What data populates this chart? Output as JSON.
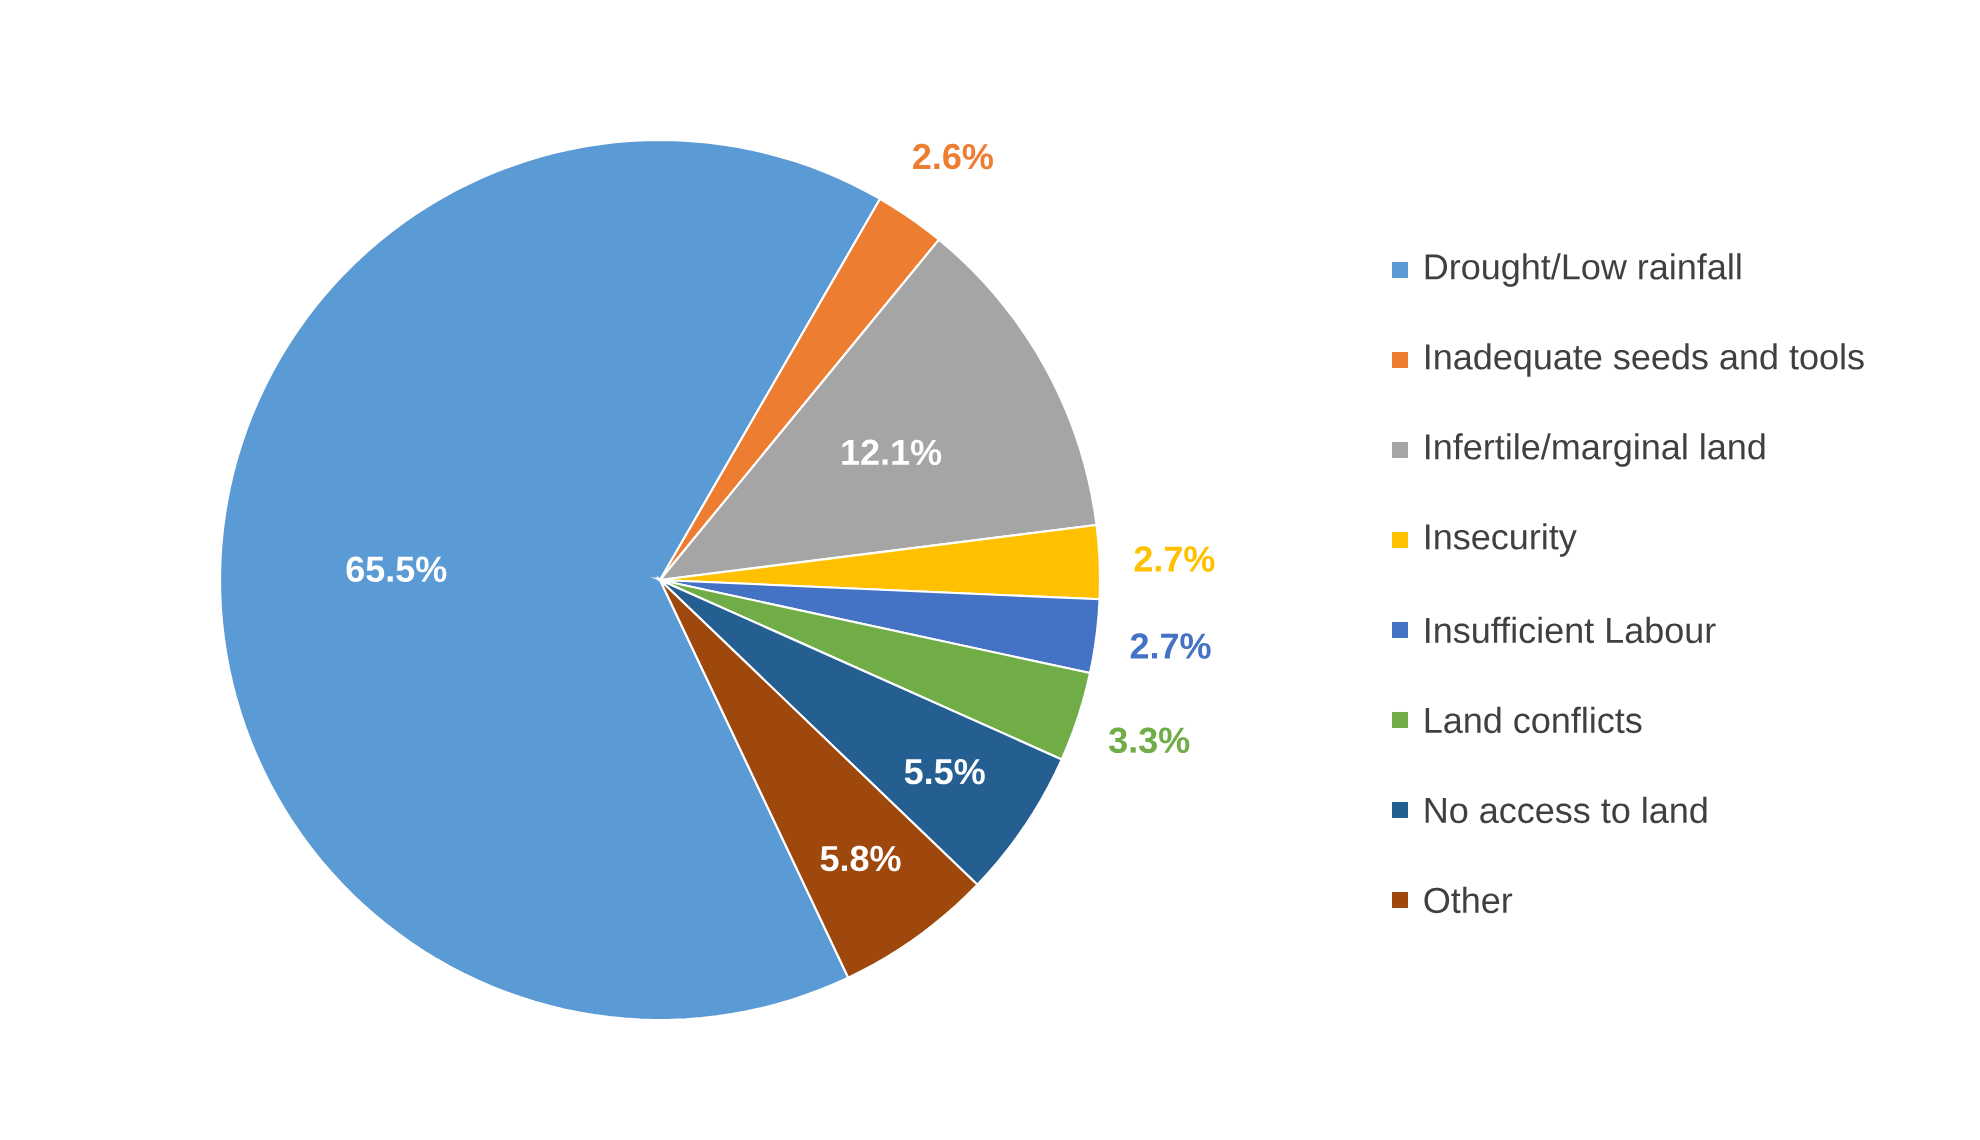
{
  "chart_data": {
    "type": "pie",
    "categories": [
      "Drought/Low rainfall",
      "Inadequate seeds and tools",
      "Infertile/marginal land",
      "Insecurity",
      "Insufficient Labour",
      "Land conflicts",
      "No access to land",
      "Other"
    ],
    "values": [
      65.5,
      2.6,
      12.1,
      2.7,
      2.7,
      3.3,
      5.5,
      5.8
    ],
    "value_labels": [
      "65.5%",
      "2.6%",
      "12.1%",
      "2.7%",
      "2.7%",
      "3.3%",
      "5.5%",
      "5.8%"
    ],
    "colors": [
      "#5b9bd5",
      "#ed7d31",
      "#a5a5a5",
      "#ffc000",
      "#4472c4",
      "#70ad47",
      "#255e91",
      "#9e480e"
    ],
    "legend": "right"
  }
}
